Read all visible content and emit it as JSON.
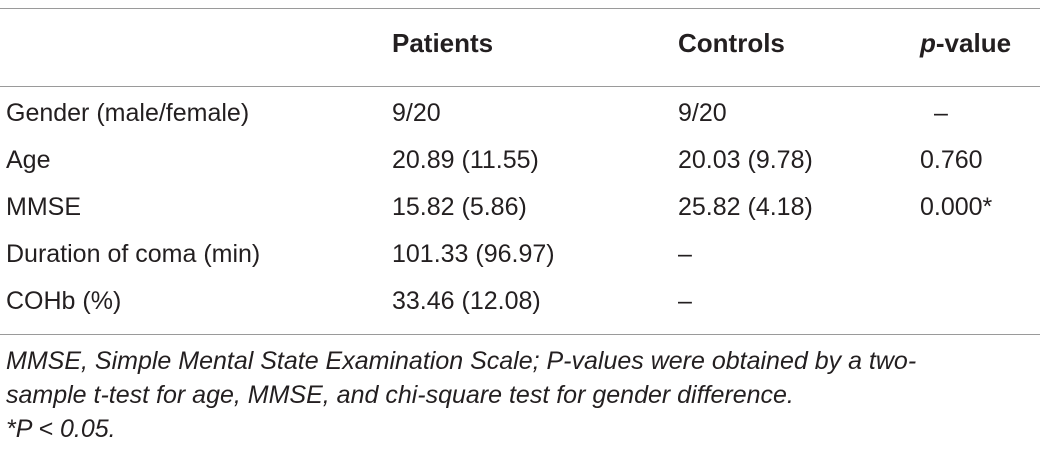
{
  "table": {
    "headers": [
      "",
      "Patients",
      "Controls"
    ],
    "pvalue_header": {
      "p": "p",
      "rest": "-value"
    },
    "rows": [
      {
        "label": "Gender (male/female)",
        "patients": "9/20",
        "controls": "9/20",
        "pvalue": "–"
      },
      {
        "label": "Age",
        "patients": "20.89 (11.55)",
        "controls": "20.03 (9.78)",
        "pvalue": "0.760"
      },
      {
        "label": "MMSE",
        "patients": "15.82 (5.86)",
        "controls": "25.82 (4.18)",
        "pvalue": "0.000*"
      },
      {
        "label": "Duration of coma (min)",
        "patients": "101.33 (96.97)",
        "controls": "–",
        "pvalue": ""
      },
      {
        "label": "COHb (%)",
        "patients": "33.46 (12.08)",
        "controls": "–",
        "pvalue": ""
      }
    ]
  },
  "footnote": {
    "line1": "MMSE, Simple Mental State Examination Scale; P-values were obtained by a two-",
    "line2": "sample t-test for age, MMSE, and chi-square test for gender difference.",
    "line3": "*P < 0.05."
  }
}
